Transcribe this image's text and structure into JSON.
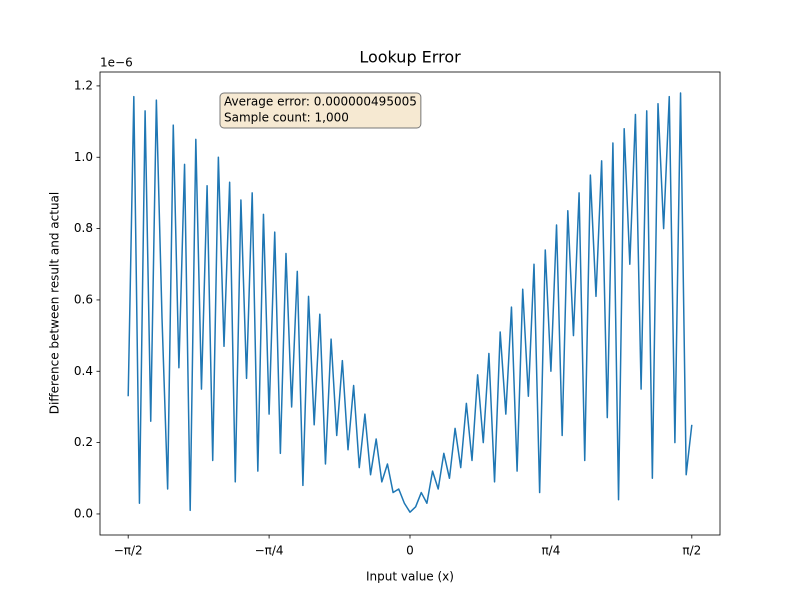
{
  "chart_data": {
    "type": "line",
    "title": "Lookup Error",
    "x_label": "Input value (x)",
    "y_label": "Difference between result and actual",
    "y_offset_label": "1e−6",
    "annotation": [
      "Average error: 0.000000495005",
      "Sample count: 1,000"
    ],
    "xlim": [
      -1.7279,
      1.7279
    ],
    "ylim": [
      -0.059,
      1.239
    ],
    "xticks": [
      {
        "value": -1.5708,
        "label": "−π/2"
      },
      {
        "value": -0.7854,
        "label": "−π/4"
      },
      0,
      {
        "value": 0.7854,
        "label": "π/4"
      },
      {
        "value": 1.5708,
        "label": "π/2"
      }
    ],
    "yticks": [
      {
        "value": 0,
        "label": "0.0"
      },
      0.2,
      0.4,
      0.6,
      0.8,
      {
        "value": 1,
        "label": "1.0"
      },
      1.2
    ],
    "x": [
      -1.5708,
      -1.5394,
      -1.508,
      -1.4765,
      -1.4451,
      -1.4137,
      -1.3823,
      -1.3509,
      -1.3195,
      -1.2881,
      -1.2566,
      -1.2252,
      -1.1938,
      -1.1624,
      -1.131,
      -1.0996,
      -1.0681,
      -1.0367,
      -1.0053,
      -0.9739,
      -0.9425,
      -0.9111,
      -0.8796,
      -0.8482,
      -0.8168,
      -0.7854,
      -0.754,
      -0.7226,
      -0.6912,
      -0.6597,
      -0.6283,
      -0.5969,
      -0.5655,
      -0.5341,
      -0.5027,
      -0.4712,
      -0.4398,
      -0.4084,
      -0.377,
      -0.3456,
      -0.3142,
      -0.2827,
      -0.2513,
      -0.2199,
      -0.1885,
      -0.1571,
      -0.1257,
      -0.0942,
      -0.0628,
      -0.0314,
      0,
      0.0314,
      0.0628,
      0.0942,
      0.1257,
      0.1571,
      0.1885,
      0.2199,
      0.2513,
      0.2827,
      0.3142,
      0.3456,
      0.377,
      0.4084,
      0.4398,
      0.4712,
      0.5027,
      0.5341,
      0.5655,
      0.5969,
      0.6283,
      0.6597,
      0.6912,
      0.7226,
      0.754,
      0.7854,
      0.8168,
      0.8482,
      0.8796,
      0.9111,
      0.9425,
      0.9739,
      1.0053,
      1.0367,
      1.0681,
      1.0996,
      1.131,
      1.1624,
      1.1938,
      1.2252,
      1.2566,
      1.2881,
      1.3195,
      1.3509,
      1.3823,
      1.4137,
      1.4451,
      1.4765,
      1.508,
      1.5394,
      1.5708
    ],
    "series": [
      {
        "color": "#1f77b4",
        "values": [
          0.33,
          1.17,
          0.03,
          1.13,
          0.26,
          1.16,
          0.55,
          0.07,
          1.09,
          0.41,
          0.98,
          0.01,
          1.05,
          0.35,
          0.92,
          0.15,
          1.0,
          0.47,
          0.93,
          0.09,
          0.88,
          0.38,
          0.9,
          0.12,
          0.84,
          0.28,
          0.79,
          0.17,
          0.73,
          0.3,
          0.68,
          0.08,
          0.61,
          0.25,
          0.56,
          0.14,
          0.49,
          0.22,
          0.43,
          0.18,
          0.36,
          0.13,
          0.28,
          0.11,
          0.21,
          0.09,
          0.14,
          0.06,
          0.07,
          0.03,
          0.005,
          0.02,
          0.06,
          0.03,
          0.12,
          0.07,
          0.17,
          0.1,
          0.24,
          0.13,
          0.31,
          0.15,
          0.39,
          0.2,
          0.45,
          0.09,
          0.51,
          0.28,
          0.58,
          0.12,
          0.63,
          0.33,
          0.7,
          0.06,
          0.74,
          0.4,
          0.81,
          0.22,
          0.85,
          0.5,
          0.9,
          0.15,
          0.95,
          0.61,
          0.99,
          0.27,
          1.04,
          0.04,
          1.08,
          0.7,
          1.12,
          0.35,
          1.13,
          0.1,
          1.15,
          0.8,
          1.17,
          0.2,
          1.18,
          0.11,
          0.25
        ]
      }
    ]
  }
}
